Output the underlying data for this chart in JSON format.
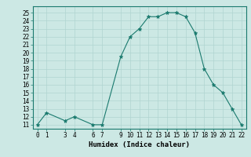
{
  "x": [
    0,
    1,
    3,
    4,
    6,
    7,
    9,
    10,
    11,
    12,
    13,
    14,
    15,
    16,
    17,
    18,
    19,
    20,
    21,
    22
  ],
  "y": [
    11,
    12.5,
    11.5,
    12,
    11,
    11,
    19.5,
    22,
    23,
    24.5,
    24.5,
    25,
    25,
    24.5,
    22.5,
    18,
    16,
    15,
    13,
    11
  ],
  "xlabel": "Humidex (Indice chaleur)",
  "xlim": [
    -0.5,
    22.5
  ],
  "ylim": [
    10.5,
    25.8
  ],
  "xticks": [
    0,
    1,
    3,
    4,
    6,
    7,
    9,
    10,
    11,
    12,
    13,
    14,
    15,
    16,
    17,
    18,
    19,
    20,
    21,
    22
  ],
  "yticks": [
    11,
    12,
    13,
    14,
    15,
    16,
    17,
    18,
    19,
    20,
    21,
    22,
    23,
    24,
    25
  ],
  "line_color": "#1a7a6e",
  "bg_color": "#cce8e4",
  "grid_color": "#b0d4d0",
  "marker": "*",
  "marker_size": 3.5,
  "tick_fontsize": 5.5,
  "xlabel_fontsize": 6.5
}
